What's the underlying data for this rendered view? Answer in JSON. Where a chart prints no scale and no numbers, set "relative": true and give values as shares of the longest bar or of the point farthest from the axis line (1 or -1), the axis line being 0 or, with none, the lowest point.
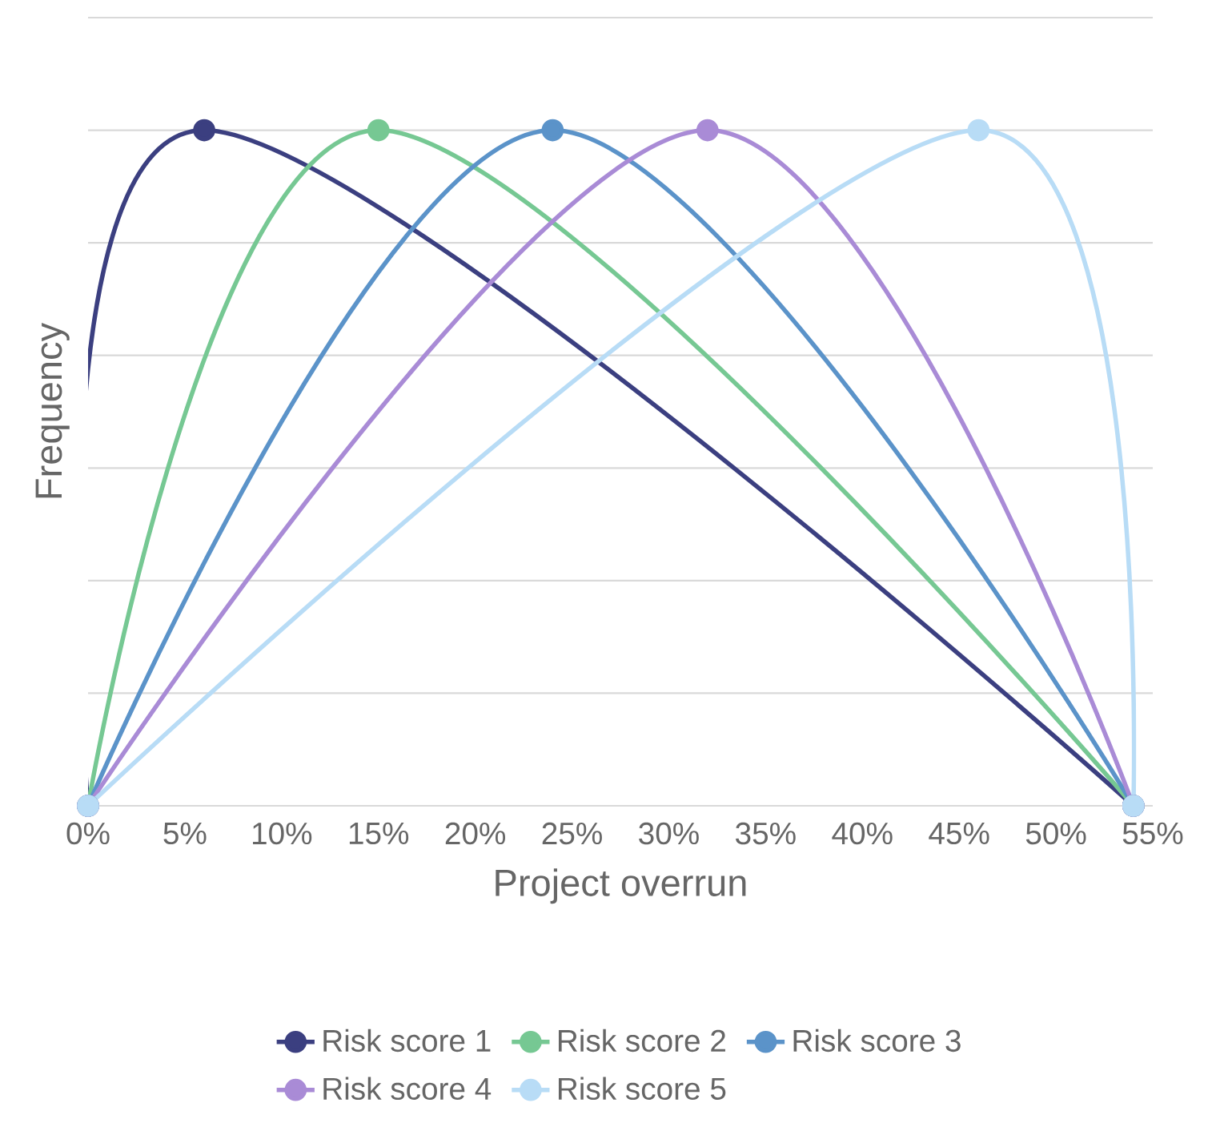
{
  "chart_data": {
    "type": "line",
    "xlabel": "Project overrun",
    "ylabel": "Frequency",
    "relative": true,
    "xlim": [
      0,
      55
    ],
    "xticks": [
      {
        "value": 0,
        "label": "0%"
      },
      {
        "value": 5,
        "label": "5%"
      },
      {
        "value": 10,
        "label": "10%"
      },
      {
        "value": 15,
        "label": "15%"
      },
      {
        "value": 20,
        "label": "20%"
      },
      {
        "value": 25,
        "label": "25%"
      },
      {
        "value": 30,
        "label": "30%"
      },
      {
        "value": 35,
        "label": "35%"
      },
      {
        "value": 40,
        "label": "40%"
      },
      {
        "value": 45,
        "label": "45%"
      },
      {
        "value": 50,
        "label": "50%"
      },
      {
        "value": 55,
        "label": "55%"
      }
    ],
    "series": [
      {
        "name": "Risk score 1",
        "color": "#3b3f80",
        "x": [
          0,
          6,
          54
        ],
        "values": [
          0,
          1,
          0
        ]
      },
      {
        "name": "Risk score 2",
        "color": "#76c893",
        "x": [
          0,
          15,
          54
        ],
        "values": [
          0,
          1,
          0
        ]
      },
      {
        "name": "Risk score 3",
        "color": "#5b93c9",
        "x": [
          0,
          24,
          54
        ],
        "values": [
          0,
          1,
          0
        ]
      },
      {
        "name": "Risk score 4",
        "color": "#a98bd6",
        "x": [
          0,
          32,
          54
        ],
        "values": [
          0,
          1,
          0
        ]
      },
      {
        "name": "Risk score 5",
        "color": "#b8dcf6",
        "x": [
          0,
          46,
          54
        ],
        "values": [
          0,
          1,
          0
        ]
      }
    ],
    "grid": "y",
    "legend": "bottom",
    "marker": "circle",
    "line_style": "solid",
    "tick_labels": "x"
  }
}
